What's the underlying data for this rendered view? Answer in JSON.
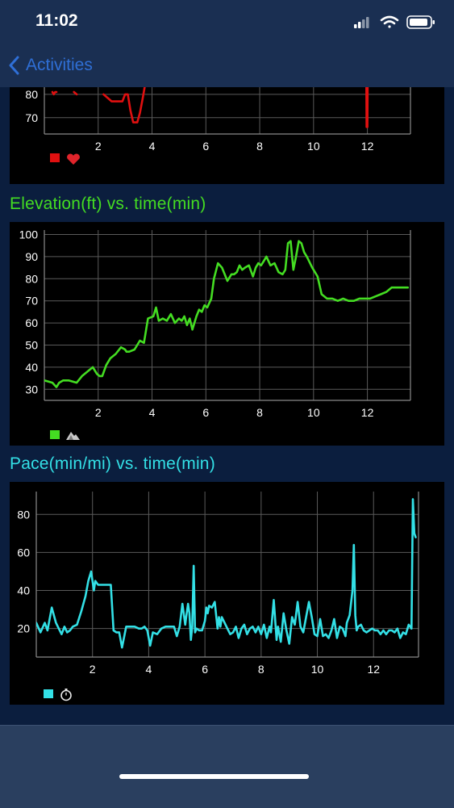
{
  "status_bar": {
    "time": "11:02"
  },
  "nav": {
    "back_label": "Activities"
  },
  "colors": {
    "heart_rate": "#e01010",
    "elevation": "#44dd22",
    "pace": "#33e0e6",
    "title_elevation": "#44dd22",
    "title_pace": "#33e0e6"
  },
  "charts": {
    "heart_rate": {
      "legend_icon": "heart-icon",
      "y_ticks": [
        "80",
        "70"
      ],
      "x_ticks": [
        "2",
        "4",
        "6",
        "8",
        "10",
        "12"
      ]
    },
    "elevation": {
      "title": "Elevation(ft) vs. time(min)",
      "legend_icon": "mountain-icon",
      "y_ticks": [
        "100",
        "90",
        "80",
        "70",
        "60",
        "50",
        "40",
        "30"
      ],
      "x_ticks": [
        "2",
        "4",
        "6",
        "8",
        "10",
        "12"
      ]
    },
    "pace": {
      "title": "Pace(min/mi) vs. time(min)",
      "legend_icon": "stopwatch-icon",
      "y_ticks": [
        "80",
        "60",
        "40",
        "20"
      ],
      "x_ticks": [
        "2",
        "4",
        "6",
        "8",
        "10",
        "12"
      ]
    }
  },
  "chart_data": [
    {
      "type": "line",
      "xlabel": "",
      "ylabel": "",
      "xlim": [
        0,
        13.6
      ],
      "ylim": [
        63,
        90
      ],
      "y_ticks": [
        80,
        70
      ],
      "x_ticks": [
        2,
        4,
        6,
        8,
        10,
        12
      ],
      "series": [
        {
          "x": [
            0.3,
            0.35,
            0.4,
            0.45
          ],
          "y": [
            81,
            80,
            81,
            81
          ]
        },
        {
          "x": [
            1.1,
            1.2
          ],
          "y": [
            81,
            80
          ]
        },
        {
          "x": [
            2.2,
            2.5,
            2.7,
            2.9,
            3.0,
            3.1,
            3.2,
            3.3,
            3.45,
            3.55,
            3.65,
            3.8
          ],
          "y": [
            80,
            77,
            77,
            77,
            80,
            80,
            73,
            68,
            68,
            72,
            78,
            88
          ]
        },
        {
          "x": [
            11.96,
            11.97,
            12.0,
            12.01
          ],
          "y": [
            85,
            66,
            66,
            85
          ]
        }
      ]
    },
    {
      "type": "line",
      "title": "Elevation(ft) vs. time(min)",
      "xlabel": "time(min)",
      "ylabel": "Elevation(ft)",
      "xlim": [
        0,
        13.6
      ],
      "ylim": [
        25,
        102
      ],
      "y_ticks": [
        100,
        90,
        80,
        70,
        60,
        50,
        40,
        30
      ],
      "x_ticks": [
        2,
        4,
        6,
        8,
        10,
        12
      ],
      "series": [
        {
          "x": [
            0.0,
            0.3,
            0.45,
            0.55,
            0.7,
            0.9,
            1.2,
            1.4,
            1.6,
            1.8,
            1.95,
            2.05,
            2.15,
            2.3,
            2.45,
            2.55,
            2.65,
            2.85,
            3.0,
            3.05,
            3.15,
            3.35,
            3.55,
            3.7,
            3.85,
            4.05,
            4.15,
            4.25,
            4.4,
            4.55,
            4.7,
            4.85,
            5.0,
            5.1,
            5.2,
            5.3,
            5.4,
            5.5,
            5.6,
            5.65,
            5.75,
            5.85,
            5.95,
            6.05,
            6.2,
            6.3,
            6.45,
            6.6,
            6.8,
            6.95,
            7.05,
            7.15,
            7.25,
            7.35,
            7.45,
            7.6,
            7.75,
            7.85,
            7.95,
            8.05,
            8.15,
            8.25,
            8.4,
            8.55,
            8.7,
            8.85,
            8.95,
            9.05,
            9.15,
            9.25,
            9.35,
            9.45,
            9.55,
            9.65,
            9.75,
            9.95,
            10.15,
            10.3,
            10.5,
            10.7,
            10.9,
            11.1,
            11.3,
            11.5,
            11.7,
            11.9,
            12.1,
            12.3,
            12.5,
            12.7,
            12.9,
            13.1,
            13.3,
            13.5
          ],
          "y": [
            34,
            33,
            31,
            33,
            34,
            34,
            33,
            36,
            38,
            40,
            37,
            36,
            36,
            41,
            44,
            45,
            46,
            49,
            48,
            47,
            47,
            48,
            52,
            51,
            62,
            63,
            67,
            61,
            62,
            61,
            64,
            60,
            62,
            61,
            63,
            59,
            62,
            57,
            61,
            63,
            66,
            65,
            68,
            67,
            71,
            80,
            87,
            85,
            79,
            82,
            82,
            83,
            86,
            84,
            85,
            86,
            81,
            85,
            87,
            86,
            88,
            90,
            86,
            87,
            83,
            82,
            84,
            96,
            97,
            84,
            90,
            97,
            96,
            92,
            90,
            85,
            81,
            73,
            71,
            71,
            70,
            71,
            70,
            70,
            71,
            71,
            71,
            72,
            73,
            74,
            76,
            76,
            76,
            76
          ]
        }
      ]
    },
    {
      "type": "line",
      "title": "Pace(min/mi) vs. time(min)",
      "xlabel": "time(min)",
      "ylabel": "Pace(min/mi)",
      "xlim": [
        0,
        13.6
      ],
      "ylim": [
        5,
        92
      ],
      "y_ticks": [
        80,
        60,
        40,
        20
      ],
      "x_ticks": [
        2,
        4,
        6,
        8,
        10,
        12
      ],
      "series": [
        {
          "x": [
            0.0,
            0.15,
            0.3,
            0.4,
            0.55,
            0.7,
            0.8,
            0.9,
            1.0,
            1.1,
            1.2,
            1.3,
            1.45,
            1.6,
            1.75,
            1.85,
            1.95,
            2.05,
            2.1,
            2.15,
            2.2,
            2.25,
            2.35,
            2.45,
            2.55,
            2.65,
            2.75,
            2.85,
            2.95,
            3.05,
            3.2,
            3.35,
            3.5,
            3.65,
            3.75,
            3.85,
            3.95,
            4.05,
            4.15,
            4.3,
            4.45,
            4.6,
            4.75,
            4.9,
            5.0,
            5.1,
            5.2,
            5.3,
            5.35,
            5.4,
            5.45,
            5.5,
            5.55,
            5.6,
            5.65,
            5.7,
            5.8,
            5.9,
            6.0,
            6.05,
            6.1,
            6.15,
            6.25,
            6.35,
            6.45,
            6.5,
            6.55,
            6.6,
            6.7,
            6.8,
            6.9,
            7.0,
            7.1,
            7.2,
            7.3,
            7.4,
            7.5,
            7.6,
            7.7,
            7.8,
            7.9,
            8.0,
            8.1,
            8.2,
            8.3,
            8.35,
            8.45,
            8.55,
            8.6,
            8.7,
            8.8,
            8.9,
            9.0,
            9.1,
            9.2,
            9.3,
            9.4,
            9.5,
            9.6,
            9.7,
            9.8,
            9.9,
            10.0,
            10.1,
            10.2,
            10.3,
            10.4,
            10.5,
            10.6,
            10.7,
            10.8,
            10.9,
            11.0,
            11.05,
            11.15,
            11.25,
            11.3,
            11.35,
            11.4,
            11.45,
            11.55,
            11.65,
            11.75,
            11.85,
            11.95,
            12.05,
            12.15,
            12.25,
            12.35,
            12.45,
            12.55,
            12.65,
            12.75,
            12.85,
            12.95,
            13.05,
            13.15,
            13.25,
            13.35,
            13.4,
            13.45,
            13.5
          ],
          "y": [
            23,
            18,
            23,
            19,
            31,
            23,
            20,
            17,
            21,
            18,
            19,
            21,
            22,
            29,
            37,
            45,
            50,
            40,
            45,
            44,
            43,
            43,
            43,
            43,
            43,
            43,
            19,
            18,
            18,
            10,
            21,
            21,
            21,
            20,
            20,
            21,
            19,
            11,
            18,
            17,
            20,
            21,
            21,
            21,
            16,
            21,
            33,
            22,
            28,
            33,
            28,
            14,
            21,
            53,
            18,
            20,
            19,
            19,
            24,
            31,
            28,
            32,
            31,
            34,
            20,
            26,
            21,
            26,
            23,
            20,
            17,
            18,
            21,
            15,
            20,
            22,
            17,
            20,
            21,
            18,
            21,
            17,
            22,
            15,
            21,
            18,
            35,
            14,
            21,
            13,
            28,
            19,
            12,
            26,
            22,
            34,
            21,
            18,
            26,
            34,
            26,
            17,
            16,
            25,
            16,
            17,
            15,
            19,
            25,
            15,
            21,
            20,
            16,
            23,
            27,
            40,
            64,
            27,
            19,
            21,
            22,
            19,
            18,
            19,
            20,
            19,
            19,
            17,
            19,
            17,
            19,
            19,
            18,
            20,
            15,
            18,
            17,
            22,
            20,
            88,
            70,
            68
          ]
        }
      ]
    }
  ]
}
